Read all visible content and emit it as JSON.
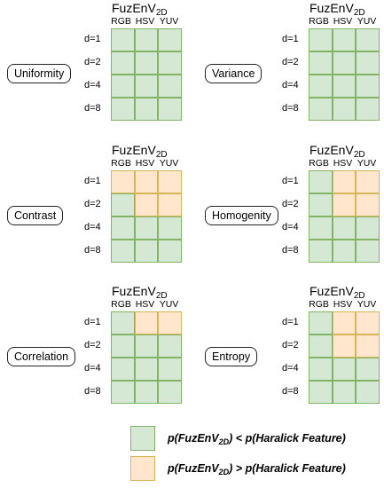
{
  "colors": {
    "lower": "#d5e8d4",
    "lower_border": "#82b366",
    "higher": "#ffe6cc",
    "higher_border": "#d6b656"
  },
  "header": {
    "main": "FuzEnV",
    "sub": "2D"
  },
  "columns": [
    "RGB",
    "HSV",
    "YUV"
  ],
  "rows": [
    "d=1",
    "d=2",
    "d=4",
    "d=8"
  ],
  "panels": [
    {
      "feature": "Uniformity",
      "cells": [
        [
          "g",
          "g",
          "g"
        ],
        [
          "g",
          "g",
          "g"
        ],
        [
          "g",
          "g",
          "g"
        ],
        [
          "g",
          "g",
          "g"
        ]
      ]
    },
    {
      "feature": "Variance",
      "cells": [
        [
          "g",
          "g",
          "g"
        ],
        [
          "g",
          "g",
          "g"
        ],
        [
          "g",
          "g",
          "g"
        ],
        [
          "g",
          "g",
          "g"
        ]
      ]
    },
    {
      "feature": "Contrast",
      "cells": [
        [
          "o",
          "o",
          "o"
        ],
        [
          "g",
          "o",
          "o"
        ],
        [
          "g",
          "g",
          "g"
        ],
        [
          "g",
          "g",
          "g"
        ]
      ]
    },
    {
      "feature": "Homogenity",
      "cells": [
        [
          "g",
          "o",
          "o"
        ],
        [
          "g",
          "o",
          "o"
        ],
        [
          "g",
          "g",
          "g"
        ],
        [
          "g",
          "g",
          "g"
        ]
      ]
    },
    {
      "feature": "Correlation",
      "cells": [
        [
          "g",
          "o",
          "o"
        ],
        [
          "g",
          "g",
          "g"
        ],
        [
          "g",
          "g",
          "g"
        ],
        [
          "g",
          "g",
          "g"
        ]
      ]
    },
    {
      "feature": "Entropy",
      "cells": [
        [
          "g",
          "o",
          "o"
        ],
        [
          "g",
          "o",
          "o"
        ],
        [
          "g",
          "g",
          "g"
        ],
        [
          "g",
          "g",
          "g"
        ]
      ]
    }
  ],
  "legend": {
    "lower": {
      "pre": "p(FuzEnV",
      "sub": "2D",
      "post": ") < p(Haralick Feature)"
    },
    "higher": {
      "pre": "p(FuzEnV",
      "sub": "2D",
      "post": ") > p(Haralick Feature)"
    }
  }
}
